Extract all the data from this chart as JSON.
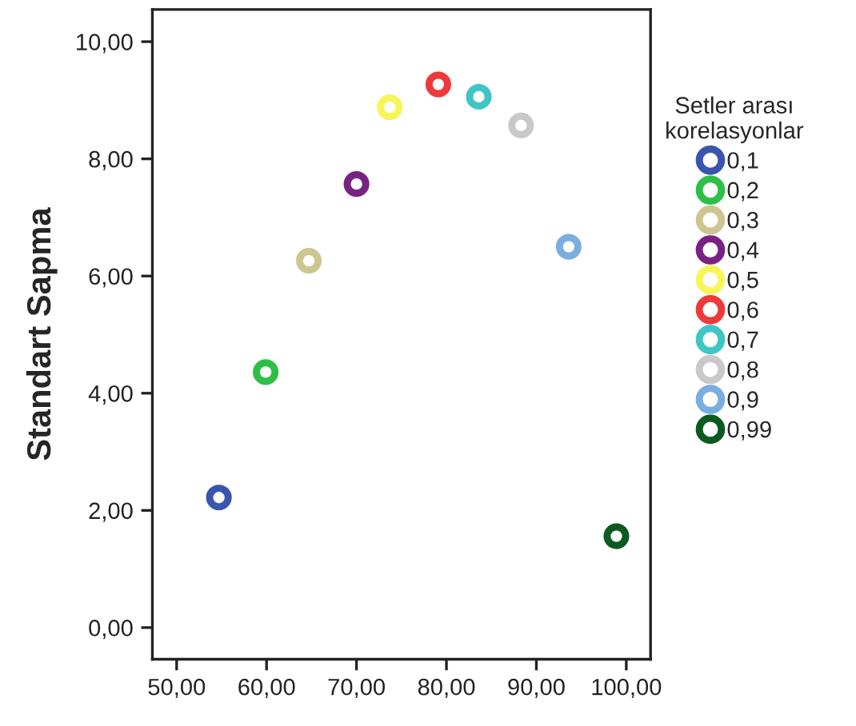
{
  "chart_data": {
    "type": "scatter",
    "ylabel": "Standart Sapma",
    "legend_title": "Setler arası\nkorelasyonlar",
    "legend": "right",
    "grid": false,
    "marker": "circle",
    "xlim": [
      47.3,
      102.7
    ],
    "ylim": [
      -0.54,
      10.55
    ],
    "xticks": [
      {
        "value": 50,
        "label": "50,00"
      },
      {
        "value": 60,
        "label": "60,00"
      },
      {
        "value": 70,
        "label": "70,00"
      },
      {
        "value": 80,
        "label": "80,00"
      },
      {
        "value": 90,
        "label": "90,00"
      },
      {
        "value": 100,
        "label": "100,00"
      }
    ],
    "yticks": [
      {
        "value": 0,
        "label": "0,00"
      },
      {
        "value": 2,
        "label": "2,00"
      },
      {
        "value": 4,
        "label": "4,00"
      },
      {
        "value": 6,
        "label": "6,00"
      },
      {
        "value": 8,
        "label": "8,00"
      },
      {
        "value": 10,
        "label": "10,00"
      }
    ],
    "series": [
      {
        "name": "0,1",
        "color": "#3a55b0",
        "x": [
          54.7
        ],
        "values": [
          2.22
        ]
      },
      {
        "name": "0,2",
        "color": "#2fbf48",
        "x": [
          59.9
        ],
        "values": [
          4.36
        ]
      },
      {
        "name": "0,3",
        "color": "#cdc690",
        "x": [
          64.7
        ],
        "values": [
          6.26
        ]
      },
      {
        "name": "0,4",
        "color": "#7a2283",
        "x": [
          70.0
        ],
        "values": [
          7.57
        ]
      },
      {
        "name": "0,5",
        "color": "#f8f55a",
        "x": [
          73.7
        ],
        "values": [
          8.88
        ]
      },
      {
        "name": "0,6",
        "color": "#ee3a3a",
        "x": [
          79.1
        ],
        "values": [
          9.27
        ]
      },
      {
        "name": "0,7",
        "color": "#3fc6c4",
        "x": [
          83.6
        ],
        "values": [
          9.06
        ]
      },
      {
        "name": "0,8",
        "color": "#c9c9c9",
        "x": [
          88.3
        ],
        "values": [
          8.57
        ]
      },
      {
        "name": "0,9",
        "color": "#7aaee0",
        "x": [
          93.6
        ],
        "values": [
          6.5
        ]
      },
      {
        "name": "0,99",
        "color": "#0c5a22",
        "x": [
          98.9
        ],
        "values": [
          1.56
        ]
      }
    ]
  }
}
